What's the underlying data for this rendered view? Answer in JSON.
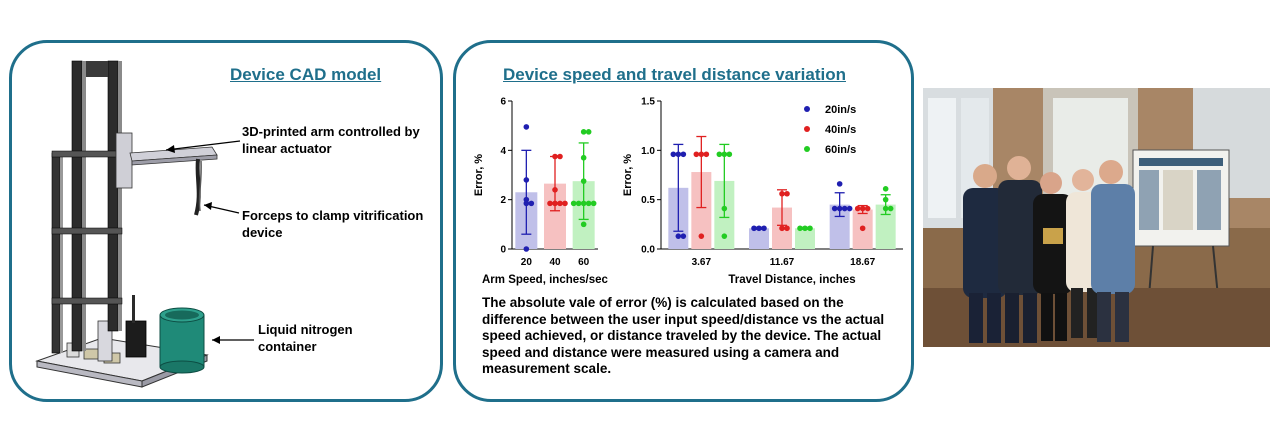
{
  "cad_panel": {
    "title": "Device CAD model",
    "label_arm": "3D-printed arm controlled by linear actuator",
    "label_forceps": "Forceps to clamp vitrification device",
    "label_container": "Liquid nitrogen container"
  },
  "chart_panel": {
    "title": "Device speed and travel distance variation",
    "description": "The absolute vale of error (%) is calculated based on the difference between the user input speed/distance vs the actual speed achieved, or distance traveled by the device. The actual speed and distance were measured using a camera and measurement scale."
  },
  "colors": {
    "blue": "#1f1fb0",
    "red": "#e02020",
    "green": "#22cc22",
    "border": "#1f6f8b"
  },
  "chart_data": [
    {
      "type": "bar",
      "categories": [
        "20",
        "40",
        "60"
      ],
      "values": [
        2.3,
        2.65,
        2.75
      ],
      "error": [
        1.7,
        1.1,
        1.55
      ],
      "points": [
        [
          4.95,
          2.8,
          2.0,
          1.85,
          1.85,
          0.0
        ],
        [
          3.75,
          3.75,
          2.4,
          1.85,
          1.85,
          1.85,
          1.85
        ],
        [
          4.75,
          4.75,
          3.7,
          2.75,
          1.85,
          1.85,
          1.85,
          1.85,
          1.85,
          1.0
        ]
      ],
      "colors": [
        "#1f1fb0",
        "#e02020",
        "#22cc22"
      ],
      "xlabel": "Arm Speed, inches/sec",
      "ylabel": "Error, %",
      "yticks": [
        "0",
        "2",
        "4",
        "6"
      ],
      "ylim": [
        0,
        6
      ]
    },
    {
      "type": "bar",
      "categories": [
        "3.67",
        "11.67",
        "18.67"
      ],
      "series": [
        {
          "name": "20in/s",
          "values": [
            0.62,
            0.21,
            0.45
          ],
          "error": [
            0.44,
            0.01,
            0.12
          ],
          "points": [
            [
              0.96,
              0.96,
              0.96,
              0.13,
              0.13
            ],
            [
              0.21,
              0.21,
              0.21
            ],
            [
              0.66,
              0.41,
              0.41,
              0.41,
              0.41
            ]
          ]
        },
        {
          "name": "40in/s",
          "values": [
            0.78,
            0.42,
            0.4
          ],
          "error": [
            0.36,
            0.18,
            0.04
          ],
          "points": [
            [
              0.96,
              0.96,
              0.96,
              0.13
            ],
            [
              0.56,
              0.56,
              0.21,
              0.21
            ],
            [
              0.41,
              0.41,
              0.41,
              0.21
            ]
          ]
        },
        {
          "name": "60in/s",
          "values": [
            0.69,
            0.21,
            0.45
          ],
          "error": [
            0.37,
            0.01,
            0.1
          ],
          "points": [
            [
              0.96,
              0.96,
              0.96,
              0.41,
              0.13
            ],
            [
              0.21,
              0.21,
              0.21
            ],
            [
              0.61,
              0.5,
              0.41,
              0.41
            ]
          ]
        }
      ],
      "colors": [
        "#1f1fb0",
        "#e02020",
        "#22cc22"
      ],
      "xlabel": "Travel Distance, inches",
      "ylabel": "Error, %",
      "yticks": [
        "0.0",
        "0.5",
        "1.0",
        "1.5"
      ],
      "ylim": [
        0,
        1.5
      ],
      "legend": "top-right"
    }
  ]
}
